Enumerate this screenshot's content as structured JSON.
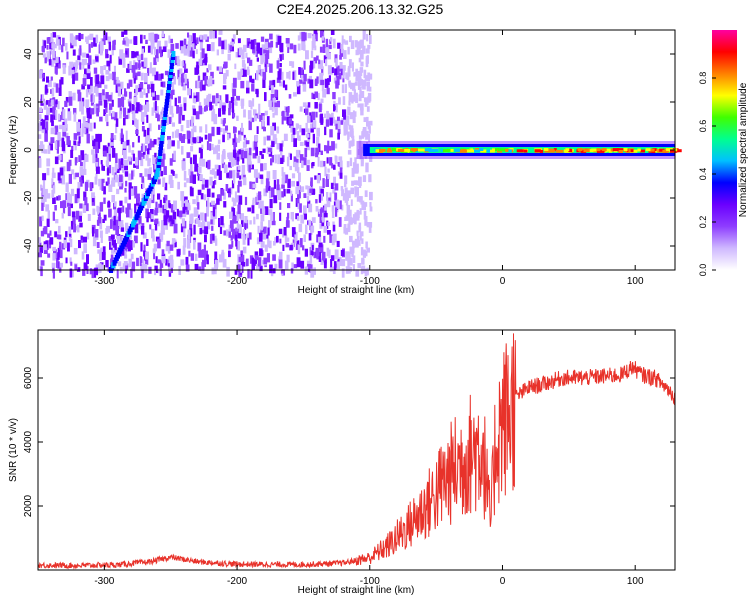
{
  "title": "C2E4.2025.206.13.32.G25",
  "colors": {
    "snr_line": "#e8322a",
    "spectrogram_background": "#ffffff",
    "colormap": [
      "#ffffff",
      "#cfb8ff",
      "#8e3dff",
      "#6a00ff",
      "#0000ff",
      "#00c0ff",
      "#00ff90",
      "#40ff00",
      "#ffff00",
      "#ff8000",
      "#ff0000",
      "#ff00a0"
    ]
  },
  "chart_data": [
    {
      "type": "heatmap",
      "xlabel": "Height of straight line (km)",
      "ylabel": "Frequency (Hz)",
      "xlim": [
        -350,
        130
      ],
      "ylim": [
        -50,
        50
      ],
      "xticks": [
        -300,
        -200,
        -100,
        0,
        100
      ],
      "xtick_labels": [
        "-300",
        "-200",
        "-100",
        "0",
        "100"
      ],
      "yticks": [
        -40,
        -20,
        0,
        20,
        40
      ],
      "ytick_labels": [
        "-40",
        "-20",
        "0",
        "20",
        "40"
      ],
      "colorbar": {
        "label": "Normalized spectral amplitude",
        "range": [
          0,
          1
        ],
        "ticks": [
          0.0,
          0.2,
          0.4,
          0.6,
          0.8
        ],
        "tick_labels": [
          "0.0",
          "0.2",
          "0.4",
          "0.6",
          "0.8"
        ]
      },
      "features": {
        "noise_region_x": [
          -350,
          -100
        ],
        "carrier_region_x": [
          -110,
          130
        ],
        "carrier_frequency": 0,
        "slanted_trace": {
          "x": [
            -295,
            -260,
            -248
          ],
          "y": [
            -50,
            -10,
            40
          ]
        }
      }
    },
    {
      "type": "line",
      "xlabel": "Height of straight line (km)",
      "ylabel": "SNR (10 * v/v)",
      "xlim": [
        -350,
        130
      ],
      "ylim": [
        0,
        7500
      ],
      "xticks": [
        -300,
        -200,
        -100,
        0,
        100
      ],
      "xtick_labels": [
        "-300",
        "-200",
        "-100",
        "0",
        "100"
      ],
      "yticks": [
        2000,
        4000,
        6000
      ],
      "ytick_labels": [
        "2000",
        "4000",
        "6000"
      ],
      "series": [
        {
          "x": [
            -350,
            -320,
            -290,
            -265,
            -250,
            -230,
            -200,
            -150,
            -120,
            -100,
            -85,
            -70,
            -55,
            -45,
            -35,
            -25,
            -15,
            -9,
            -5,
            0,
            5,
            10,
            20,
            30,
            45,
            60,
            75,
            90,
            98,
            105,
            115,
            125,
            130
          ],
          "y": [
            150,
            140,
            160,
            260,
            400,
            260,
            180,
            170,
            220,
            380,
            800,
            1400,
            2100,
            2700,
            3200,
            3600,
            3900,
            1500,
            4100,
            4600,
            4900,
            5400,
            5700,
            5800,
            6000,
            6000,
            6050,
            6100,
            6350,
            6100,
            6000,
            5650,
            5400
          ]
        }
      ]
    }
  ]
}
